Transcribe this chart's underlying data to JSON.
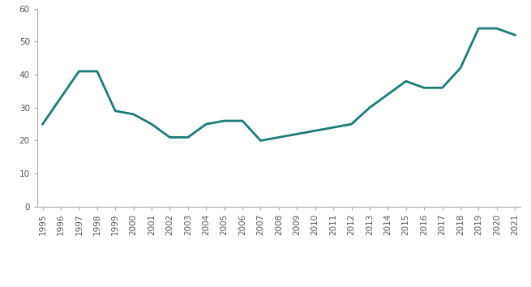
{
  "years": [
    1995,
    1996,
    1997,
    1998,
    1999,
    2000,
    2001,
    2002,
    2003,
    2004,
    2005,
    2006,
    2007,
    2008,
    2009,
    2010,
    2011,
    2012,
    2013,
    2014,
    2015,
    2016,
    2017,
    2018,
    2019,
    2020,
    2021
  ],
  "values": [
    25,
    33,
    41,
    41,
    29,
    28,
    25,
    21,
    21,
    25,
    26,
    26,
    20,
    21,
    22,
    23,
    24,
    25,
    30,
    34,
    38,
    36,
    36,
    42,
    54,
    54,
    52
  ],
  "line_color": "#1a7a7a",
  "line_width": 2.0,
  "ylim": [
    0,
    60
  ],
  "yticks": [
    0,
    10,
    20,
    30,
    40,
    50,
    60
  ],
  "background_color": "#ffffff",
  "spine_color": "#aaaaaa",
  "tick_color": "#555555",
  "tick_label_fontsize": 7.5
}
